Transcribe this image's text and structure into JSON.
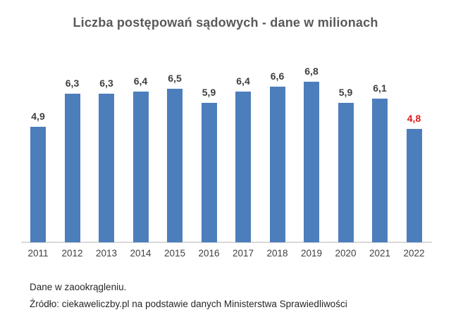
{
  "chart_data": {
    "type": "bar",
    "title": "Liczba postępowań sądowych - dane w milionach",
    "categories": [
      "2011",
      "2012",
      "2013",
      "2014",
      "2015",
      "2016",
      "2017",
      "2018",
      "2019",
      "2020",
      "2021",
      "2022"
    ],
    "values": [
      4.9,
      6.3,
      6.3,
      6.4,
      6.5,
      5.9,
      6.4,
      6.6,
      6.8,
      5.9,
      6.1,
      4.8
    ],
    "value_labels": [
      "4,9",
      "6,3",
      "6,3",
      "6,4",
      "6,5",
      "5,9",
      "6,4",
      "6,6",
      "6,8",
      "5,9",
      "6,1",
      "4,8"
    ],
    "highlight_index": 11,
    "xlabel": "",
    "ylabel": "",
    "ylim": [
      0,
      7.3
    ],
    "grid": false,
    "legend": false,
    "colors": {
      "bar": "#4d7ebc",
      "value_label": "#3f3f3f",
      "highlight_value_label": "#e01b1b",
      "axis_line": "#d9d9d9",
      "title": "#595959"
    }
  },
  "notes": {
    "line1": "Dane w zaookrągleniu.",
    "line2": "Źródło: ciekaweliczby.pl na podstawie danych Ministerstwa Sprawiedliwości"
  }
}
